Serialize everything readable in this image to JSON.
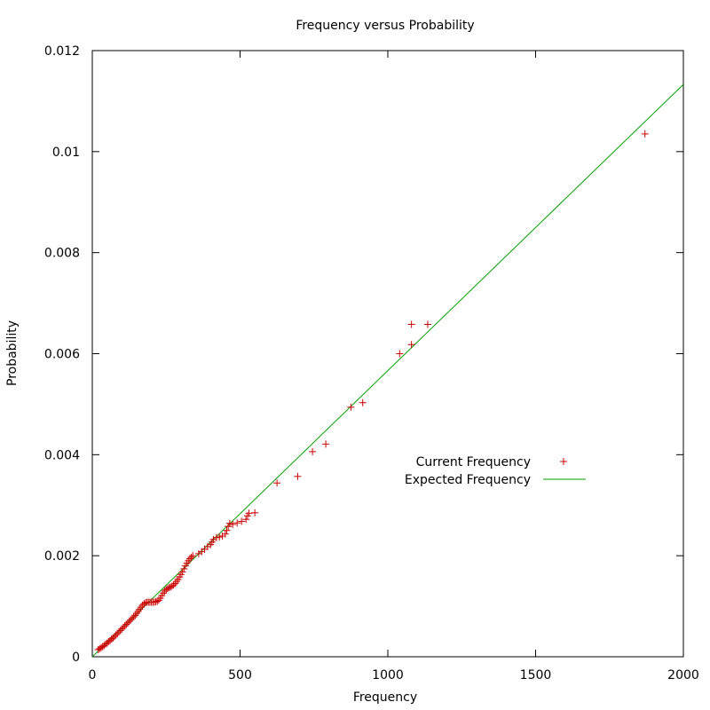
{
  "chart_data": {
    "type": "scatter",
    "title": "Frequency versus Probability",
    "xlabel": "Frequency",
    "ylabel": "Probability",
    "xlim": [
      0,
      2000
    ],
    "ylim": [
      0,
      0.012
    ],
    "x_ticks": [
      0,
      500,
      1000,
      1500,
      2000
    ],
    "x_tick_labels": [
      "0",
      "500",
      "1000",
      "1500",
      "2000"
    ],
    "y_ticks": [
      0,
      0.002,
      0.004,
      0.006,
      0.008,
      0.01,
      0.012
    ],
    "y_tick_labels": [
      "0",
      "0.002",
      "0.004",
      "0.006",
      "0.008",
      "0.01",
      "0.012"
    ],
    "grid": false,
    "legend_position": "center-right",
    "series": [
      {
        "name": "Current Frequency",
        "kind": "points",
        "marker": "plus",
        "color": "#cc0000",
        "points": [
          [
            20,
            0.00014
          ],
          [
            25,
            0.00016
          ],
          [
            30,
            0.00018
          ],
          [
            35,
            0.0002
          ],
          [
            40,
            0.00022
          ],
          [
            45,
            0.00025
          ],
          [
            50,
            0.00027
          ],
          [
            55,
            0.0003
          ],
          [
            60,
            0.00032
          ],
          [
            65,
            0.00035
          ],
          [
            70,
            0.00037
          ],
          [
            75,
            0.0004
          ],
          [
            80,
            0.00043
          ],
          [
            85,
            0.00046
          ],
          [
            90,
            0.00049
          ],
          [
            95,
            0.00052
          ],
          [
            100,
            0.00055
          ],
          [
            105,
            0.00058
          ],
          [
            110,
            0.00061
          ],
          [
            115,
            0.00064
          ],
          [
            120,
            0.00067
          ],
          [
            125,
            0.0007
          ],
          [
            130,
            0.00073
          ],
          [
            135,
            0.00076
          ],
          [
            140,
            0.00079
          ],
          [
            145,
            0.00082
          ],
          [
            150,
            0.00086
          ],
          [
            155,
            0.0009
          ],
          [
            160,
            0.00094
          ],
          [
            165,
            0.00098
          ],
          [
            170,
            0.00102
          ],
          [
            175,
            0.00105
          ],
          [
            180,
            0.00107
          ],
          [
            185,
            0.00108
          ],
          [
            190,
            0.00108
          ],
          [
            195,
            0.00108
          ],
          [
            200,
            0.00108
          ],
          [
            205,
            0.00108
          ],
          [
            210,
            0.00108
          ],
          [
            215,
            0.00109
          ],
          [
            220,
            0.0011
          ],
          [
            225,
            0.00112
          ],
          [
            230,
            0.00116
          ],
          [
            235,
            0.00121
          ],
          [
            240,
            0.00126
          ],
          [
            245,
            0.0013
          ],
          [
            250,
            0.00133
          ],
          [
            255,
            0.00135
          ],
          [
            260,
            0.00137
          ],
          [
            265,
            0.00138
          ],
          [
            270,
            0.0014
          ],
          [
            275,
            0.00142
          ],
          [
            280,
            0.00145
          ],
          [
            285,
            0.00149
          ],
          [
            290,
            0.00153
          ],
          [
            295,
            0.00158
          ],
          [
            300,
            0.00163
          ],
          [
            305,
            0.00168
          ],
          [
            310,
            0.00174
          ],
          [
            315,
            0.0018
          ],
          [
            320,
            0.00185
          ],
          [
            325,
            0.0019
          ],
          [
            330,
            0.00194
          ],
          [
            335,
            0.00197
          ],
          [
            340,
            0.002
          ],
          [
            360,
            0.00204
          ],
          [
            370,
            0.00208
          ],
          [
            380,
            0.00213
          ],
          [
            390,
            0.00218
          ],
          [
            400,
            0.00222
          ],
          [
            405,
            0.00227
          ],
          [
            410,
            0.00232
          ],
          [
            420,
            0.00236
          ],
          [
            430,
            0.00237
          ],
          [
            440,
            0.00239
          ],
          [
            450,
            0.00243
          ],
          [
            455,
            0.0025
          ],
          [
            460,
            0.00258
          ],
          [
            465,
            0.00264
          ],
          [
            475,
            0.00262
          ],
          [
            490,
            0.00265
          ],
          [
            505,
            0.00268
          ],
          [
            520,
            0.00272
          ],
          [
            525,
            0.00279
          ],
          [
            530,
            0.00284
          ],
          [
            550,
            0.00285
          ],
          [
            625,
            0.00344
          ],
          [
            695,
            0.00357
          ],
          [
            745,
            0.00406
          ],
          [
            790,
            0.00421
          ],
          [
            875,
            0.00494
          ],
          [
            915,
            0.00503
          ],
          [
            1040,
            0.006
          ],
          [
            1080,
            0.00618
          ],
          [
            1080,
            0.00658
          ],
          [
            1135,
            0.00658
          ],
          [
            1870,
            0.01035
          ]
        ]
      },
      {
        "name": "Expected Frequency",
        "kind": "line",
        "color": "#00a000",
        "points": [
          [
            0,
            0
          ],
          [
            2000,
            0.01133
          ]
        ]
      }
    ]
  }
}
